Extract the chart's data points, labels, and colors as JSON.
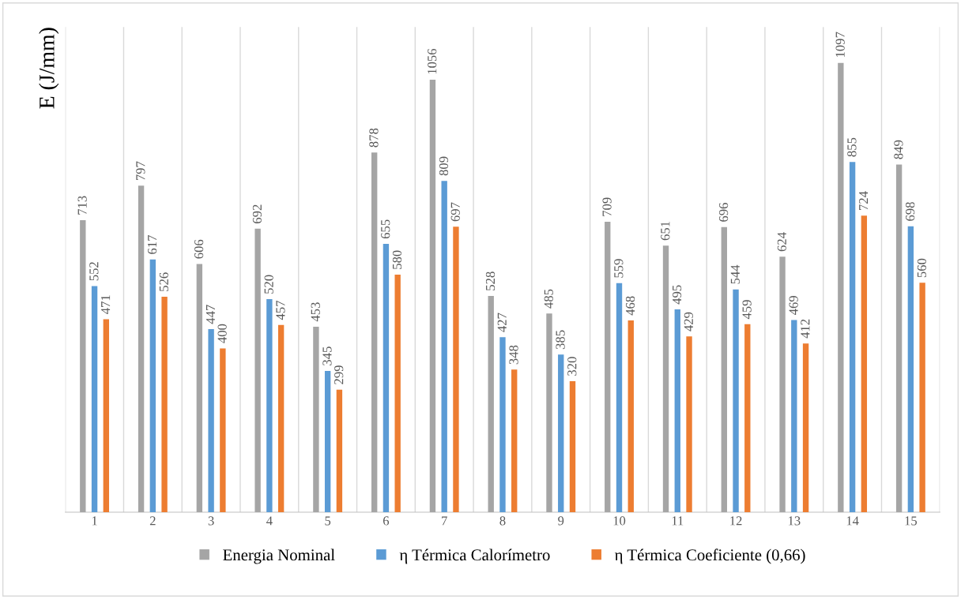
{
  "chart_data": {
    "type": "bar",
    "ylabel": "E (J/mm)",
    "categories": [
      "1",
      "2",
      "3",
      "4",
      "5",
      "6",
      "7",
      "8",
      "9",
      "10",
      "11",
      "12",
      "13",
      "14",
      "15"
    ],
    "series": [
      {
        "name": "Energia Nominal",
        "color": "#a5a5a5",
        "values": [
          713,
          797,
          606,
          692,
          453,
          878,
          1056,
          528,
          485,
          709,
          651,
          696,
          624,
          1097,
          849
        ]
      },
      {
        "name": "η Térmica Calorímetro",
        "color": "#5b9bd5",
        "values": [
          552,
          617,
          447,
          520,
          345,
          655,
          809,
          427,
          385,
          559,
          495,
          544,
          469,
          855,
          698
        ]
      },
      {
        "name": "η Térmica Coeficiente (0,66)",
        "color": "#ed7d31",
        "values": [
          471,
          526,
          400,
          457,
          299,
          580,
          697,
          348,
          320,
          468,
          429,
          459,
          412,
          724,
          560
        ]
      }
    ],
    "data_labels": true,
    "grid": "x",
    "legend": "bottom",
    "tick_labels": "x"
  }
}
